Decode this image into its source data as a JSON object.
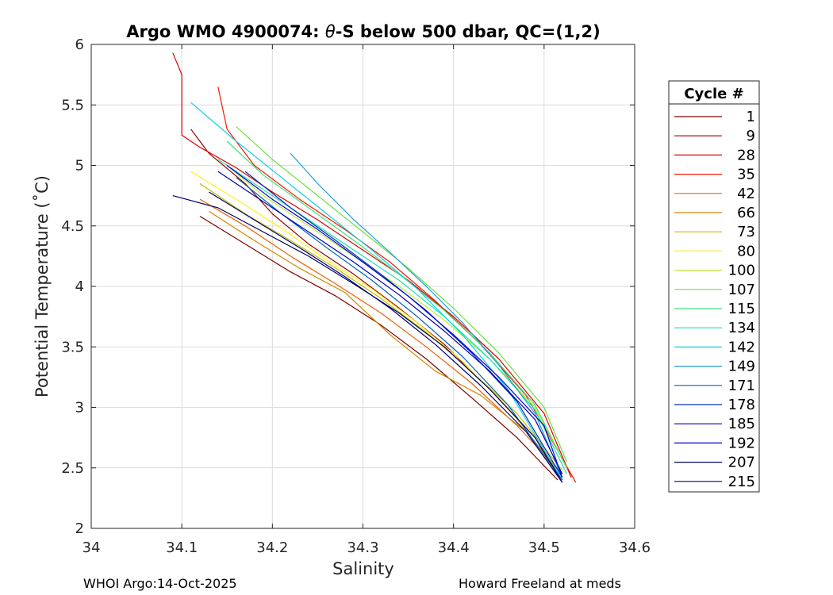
{
  "chart_data": {
    "type": "line",
    "title_prefix": "Argo WMO 4900074: ",
    "title_symbol": "θ",
    "title_suffix": "-S below 500 dbar,  QC=(1,2)",
    "xlabel": "Salinity",
    "ylabel": "Potential Temperature (˚C)",
    "xlim": [
      34.0,
      34.6
    ],
    "ylim": [
      2,
      6
    ],
    "xticks": [
      34,
      34.1,
      34.2,
      34.3,
      34.4,
      34.5,
      34.6
    ],
    "xtick_labels": [
      "34",
      "34.1",
      "34.2",
      "34.3",
      "34.4",
      "34.5",
      "34.6"
    ],
    "yticks": [
      2,
      2.5,
      3,
      3.5,
      4,
      4.5,
      5,
      5.5,
      6
    ],
    "ytick_labels": [
      "2",
      "2.5",
      "3",
      "3.5",
      "4",
      "4.5",
      "5",
      "5.5",
      "6"
    ],
    "grid": true,
    "colormap": "jet",
    "legend": {
      "title": "Cycle #",
      "placement": "right",
      "entries": [
        {
          "label": "1",
          "color": "#800000"
        },
        {
          "label": "9",
          "color": "#990000"
        },
        {
          "label": "28",
          "color": "#e00000"
        },
        {
          "label": "35",
          "color": "#f01a00"
        },
        {
          "label": "42",
          "color": "#f06000"
        },
        {
          "label": "66",
          "color": "#d08800"
        },
        {
          "label": "73",
          "color": "#c0c000"
        },
        {
          "label": "80",
          "color": "#ffef20"
        },
        {
          "label": "100",
          "color": "#b8ee30"
        },
        {
          "label": "107",
          "color": "#70e040"
        },
        {
          "label": "115",
          "color": "#40e080"
        },
        {
          "label": "134",
          "color": "#20e0b0"
        },
        {
          "label": "142",
          "color": "#10d0e0"
        },
        {
          "label": "149",
          "color": "#20a0d0"
        },
        {
          "label": "171",
          "color": "#0060c0"
        },
        {
          "label": "178",
          "color": "#0030b0"
        },
        {
          "label": "185",
          "color": "#0000b0"
        },
        {
          "label": "192",
          "color": "#0000e0"
        },
        {
          "label": "207",
          "color": "#000060"
        },
        {
          "label": "215",
          "color": "#000080"
        }
      ]
    },
    "series": [
      {
        "name": "1",
        "x": [
          34.12,
          34.17,
          34.22,
          34.27,
          34.32,
          34.37,
          34.42,
          34.47,
          34.515
        ],
        "y": [
          4.58,
          4.35,
          4.12,
          3.92,
          3.68,
          3.4,
          3.08,
          2.75,
          2.4
        ]
      },
      {
        "name": "9",
        "x": [
          34.11,
          34.13,
          34.17,
          34.2,
          34.24,
          34.29,
          34.34,
          34.39,
          34.44,
          34.49,
          34.52
        ],
        "y": [
          5.3,
          5.1,
          4.85,
          4.6,
          4.35,
          4.1,
          3.82,
          3.52,
          3.15,
          2.75,
          2.4
        ]
      },
      {
        "name": "28",
        "x": [
          34.09,
          34.1,
          34.1,
          34.12,
          34.16,
          34.2,
          34.25,
          34.3,
          34.35,
          34.4,
          34.45,
          34.5,
          34.53
        ],
        "y": [
          5.93,
          5.75,
          5.25,
          5.15,
          4.98,
          4.78,
          4.55,
          4.3,
          4.05,
          3.75,
          3.4,
          2.95,
          2.42
        ]
      },
      {
        "name": "35",
        "x": [
          34.14,
          34.15,
          34.18,
          34.23,
          34.28,
          34.33,
          34.38,
          34.43,
          34.48,
          34.535
        ],
        "y": [
          5.65,
          5.3,
          5.0,
          4.72,
          4.47,
          4.2,
          3.88,
          3.52,
          3.1,
          2.38
        ]
      },
      {
        "name": "42",
        "x": [
          34.12,
          34.17,
          34.22,
          34.27,
          34.32,
          34.37,
          34.42,
          34.47,
          34.52
        ],
        "y": [
          4.72,
          4.5,
          4.25,
          4.02,
          3.78,
          3.5,
          3.2,
          2.85,
          2.45
        ]
      },
      {
        "name": "66",
        "x": [
          34.13,
          34.18,
          34.23,
          34.28,
          34.33,
          34.38,
          34.43,
          34.48,
          34.52
        ],
        "y": [
          4.62,
          4.38,
          4.15,
          3.95,
          3.6,
          3.3,
          3.1,
          2.8,
          2.45
        ]
      },
      {
        "name": "73",
        "x": [
          34.12,
          34.17,
          34.22,
          34.27,
          34.32,
          34.37,
          34.42,
          34.47,
          34.52
        ],
        "y": [
          4.85,
          4.6,
          4.38,
          4.15,
          3.9,
          3.62,
          3.3,
          2.95,
          2.48
        ]
      },
      {
        "name": "80",
        "x": [
          34.11,
          34.16,
          34.21,
          34.26,
          34.31,
          34.36,
          34.41,
          34.46,
          34.515
        ],
        "y": [
          4.95,
          4.72,
          4.48,
          4.22,
          3.98,
          3.7,
          3.38,
          3.0,
          2.45
        ]
      },
      {
        "name": "100",
        "x": [
          34.15,
          34.19,
          34.24,
          34.29,
          34.34,
          34.39,
          34.44,
          34.49,
          34.525
        ],
        "y": [
          5.0,
          4.75,
          4.5,
          4.25,
          4.0,
          3.72,
          3.4,
          3.0,
          2.5
        ]
      },
      {
        "name": "107",
        "x": [
          34.16,
          34.2,
          34.25,
          34.3,
          34.35,
          34.4,
          34.45,
          34.5,
          34.525
        ],
        "y": [
          5.32,
          5.05,
          4.75,
          4.45,
          4.15,
          3.82,
          3.45,
          3.0,
          2.55
        ]
      },
      {
        "name": "115",
        "x": [
          34.15,
          34.19,
          34.24,
          34.29,
          34.34,
          34.39,
          34.44,
          34.49,
          34.525
        ],
        "y": [
          5.2,
          4.92,
          4.65,
          4.38,
          4.1,
          3.8,
          3.45,
          3.02,
          2.5
        ]
      },
      {
        "name": "134",
        "x": [
          34.14,
          34.19,
          34.24,
          34.29,
          34.34,
          34.39,
          34.44,
          34.49,
          34.525
        ],
        "y": [
          5.05,
          4.8,
          4.55,
          4.3,
          4.05,
          3.75,
          3.4,
          2.98,
          2.45
        ]
      },
      {
        "name": "142",
        "x": [
          34.11,
          34.16,
          34.21,
          34.26,
          34.31,
          34.36,
          34.41,
          34.46,
          34.52
        ],
        "y": [
          5.52,
          5.2,
          4.9,
          4.6,
          4.3,
          3.98,
          3.6,
          3.15,
          2.4
        ]
      },
      {
        "name": "149",
        "x": [
          34.22,
          34.25,
          34.29,
          34.33,
          34.37,
          34.41,
          34.45,
          34.49,
          34.52
        ],
        "y": [
          5.1,
          4.85,
          4.55,
          4.28,
          4.0,
          3.7,
          3.35,
          2.95,
          2.42
        ]
      },
      {
        "name": "171",
        "x": [
          34.16,
          34.21,
          34.26,
          34.31,
          34.36,
          34.41,
          34.46,
          34.52
        ],
        "y": [
          4.9,
          4.6,
          4.32,
          4.05,
          3.75,
          3.42,
          3.02,
          2.4
        ]
      },
      {
        "name": "178",
        "x": [
          34.17,
          34.22,
          34.27,
          34.32,
          34.37,
          34.42,
          34.47,
          34.52
        ],
        "y": [
          4.95,
          4.65,
          4.38,
          4.1,
          3.8,
          3.45,
          3.05,
          2.42
        ]
      },
      {
        "name": "185",
        "x": [
          34.14,
          34.19,
          34.24,
          34.29,
          34.34,
          34.39,
          34.44,
          34.49,
          34.52
        ],
        "y": [
          4.95,
          4.7,
          4.45,
          4.2,
          3.93,
          3.63,
          3.3,
          2.9,
          2.45
        ]
      },
      {
        "name": "192",
        "x": [
          34.15,
          34.2,
          34.25,
          34.3,
          34.35,
          34.4,
          34.45,
          34.5,
          34.52
        ],
        "y": [
          5.0,
          4.72,
          4.47,
          4.2,
          3.92,
          3.6,
          3.25,
          2.85,
          2.42
        ]
      },
      {
        "name": "207",
        "x": [
          34.09,
          34.14,
          34.19,
          34.24,
          34.29,
          34.34,
          34.39,
          34.44,
          34.49,
          34.52
        ],
        "y": [
          4.75,
          4.65,
          4.45,
          4.25,
          4.02,
          3.78,
          3.5,
          3.15,
          2.75,
          2.38
        ]
      },
      {
        "name": "215",
        "x": [
          34.13,
          34.18,
          34.23,
          34.28,
          34.33,
          34.38,
          34.43,
          34.48,
          34.52
        ],
        "y": [
          4.78,
          4.55,
          4.32,
          4.08,
          3.82,
          3.52,
          3.18,
          2.8,
          2.38
        ]
      }
    ]
  },
  "footer": {
    "left": "WHOI Argo:14-Oct-2025",
    "right": "Howard Freeland at meds"
  }
}
